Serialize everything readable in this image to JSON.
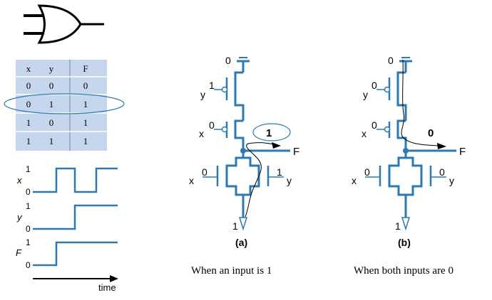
{
  "truth_table": {
    "headers": [
      "x",
      "y",
      "F"
    ],
    "rows": [
      [
        "0",
        "0",
        "0"
      ],
      [
        "0",
        "1",
        "1"
      ],
      [
        "1",
        "0",
        "1"
      ],
      [
        "1",
        "1",
        "1"
      ]
    ],
    "highlighted_row": 1
  },
  "waveforms": {
    "x": {
      "name": "x",
      "high": "1",
      "low": "0",
      "levels": [
        0,
        1,
        0,
        1
      ]
    },
    "y": {
      "name": "y",
      "high": "1",
      "low": "0",
      "levels": [
        0,
        1
      ]
    },
    "F": {
      "name": "F",
      "high": "1",
      "low": "0",
      "levels": [
        0,
        1
      ]
    },
    "time_label": "time"
  },
  "panel_a": {
    "vdd_value": "0",
    "pmos_top_gate": {
      "name": "y",
      "value": "1"
    },
    "pmos_bottom_gate": {
      "name": "x",
      "value": "0"
    },
    "output_value": "1",
    "output_label": "F",
    "nmos_left_gate": {
      "name": "x",
      "value": "0"
    },
    "nmos_right_gate": {
      "name": "y",
      "value": "1"
    },
    "ground_value": "1",
    "caption_letter": "(a)",
    "caption": "When an input is 1"
  },
  "panel_b": {
    "vdd_value": "0",
    "pmos_top_gate": {
      "name": "y",
      "value": "0"
    },
    "pmos_bottom_gate": {
      "name": "x",
      "value": "0"
    },
    "output_value": "0",
    "output_label": "F",
    "nmos_left_gate": {
      "name": "x",
      "value": "0"
    },
    "nmos_right_gate": {
      "name": "y",
      "value": "0"
    },
    "ground_value": "1",
    "caption_letter": "(b)",
    "caption": "When both inputs are 0"
  },
  "colors": {
    "circuit": "#2a7ab8",
    "table_bg": "#c6d6ec",
    "highlight": "#2a7ab8",
    "ink": "#000000"
  }
}
